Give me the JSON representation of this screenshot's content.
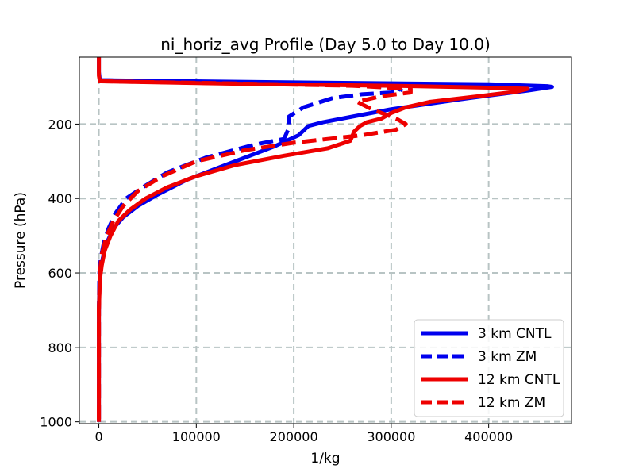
{
  "chart_data": {
    "type": "line",
    "title": "ni_horiz_avg Profile (Day 5.0 to Day 10.0)",
    "xlabel": "1/kg",
    "ylabel": "Pressure (hPa)",
    "xlim": [
      -20000,
      485000
    ],
    "ylim": [
      1005,
      20
    ],
    "y_inverted": true,
    "grid": true,
    "legend_position": "lower-right",
    "x_ticks": [
      0,
      100000,
      200000,
      300000,
      400000
    ],
    "x_tick_labels": [
      "0",
      "100000",
      "200000",
      "300000",
      "400000"
    ],
    "y_ticks": [
      200,
      400,
      600,
      800,
      1000
    ],
    "y_tick_labels": [
      "200",
      "400",
      "600",
      "800",
      "1000"
    ],
    "series": [
      {
        "name": "3 km CNTL",
        "color": "#0000ee",
        "dash": "solid",
        "x": [
          0,
          0,
          1000,
          200000,
          400000,
          460000,
          465000,
          440000,
          380000,
          300000,
          260000,
          230000,
          215000,
          205000,
          180000,
          130000,
          90000,
          60000,
          40000,
          25000,
          15000,
          8000,
          4000,
          1500,
          500,
          0,
          0,
          0
        ],
        "y": [
          20,
          60,
          82,
          88,
          93,
          98,
          100,
          110,
          130,
          160,
          180,
          195,
          205,
          230,
          260,
          310,
          350,
          390,
          420,
          450,
          480,
          520,
          560,
          600,
          640,
          700,
          800,
          1000
        ]
      },
      {
        "name": "3 km ZM",
        "color": "#0000ee",
        "dash": "dashed",
        "x": [
          0,
          3000,
          150000,
          260000,
          305000,
          310000,
          300000,
          270000,
          240000,
          210000,
          195000,
          195000,
          190000,
          160000,
          110000,
          70000,
          45000,
          28000,
          17000,
          10000,
          5000,
          2000,
          500,
          0,
          0
        ],
        "y": [
          80,
          82,
          88,
          95,
          103,
          108,
          115,
          120,
          130,
          155,
          180,
          210,
          240,
          255,
          290,
          330,
          370,
          400,
          440,
          480,
          520,
          560,
          600,
          700,
          1000
        ]
      },
      {
        "name": "12 km CNTL",
        "color": "#ee0000",
        "dash": "solid",
        "x": [
          0,
          0,
          1000,
          150000,
          300000,
          400000,
          440000,
          430000,
          390000,
          340000,
          315000,
          300000,
          290000,
          275000,
          268000,
          262000,
          258000,
          235000,
          190000,
          140000,
          100000,
          70000,
          48000,
          32000,
          20000,
          12000,
          6000,
          3000,
          1000,
          0,
          0
        ],
        "y": [
          20,
          70,
          85,
          92,
          97,
          102,
          105,
          112,
          125,
          140,
          155,
          170,
          185,
          195,
          205,
          220,
          245,
          265,
          285,
          310,
          340,
          370,
          400,
          430,
          460,
          500,
          540,
          580,
          620,
          700,
          1000
        ]
      },
      {
        "name": "12 km ZM",
        "color": "#ee0000",
        "dash": "dashed",
        "x": [
          0,
          5000,
          120000,
          260000,
          320000,
          320000,
          290000,
          265000,
          280000,
          305000,
          315000,
          305000,
          270000,
          200000,
          150000,
          100000,
          65000,
          40000,
          25000,
          15000,
          8000,
          3000,
          1000,
          0,
          0
        ],
        "y": [
          80,
          85,
          90,
          97,
          105,
          115,
          125,
          140,
          160,
          185,
          200,
          215,
          230,
          250,
          270,
          300,
          340,
          380,
          420,
          460,
          500,
          550,
          600,
          700,
          1000
        ]
      }
    ]
  }
}
